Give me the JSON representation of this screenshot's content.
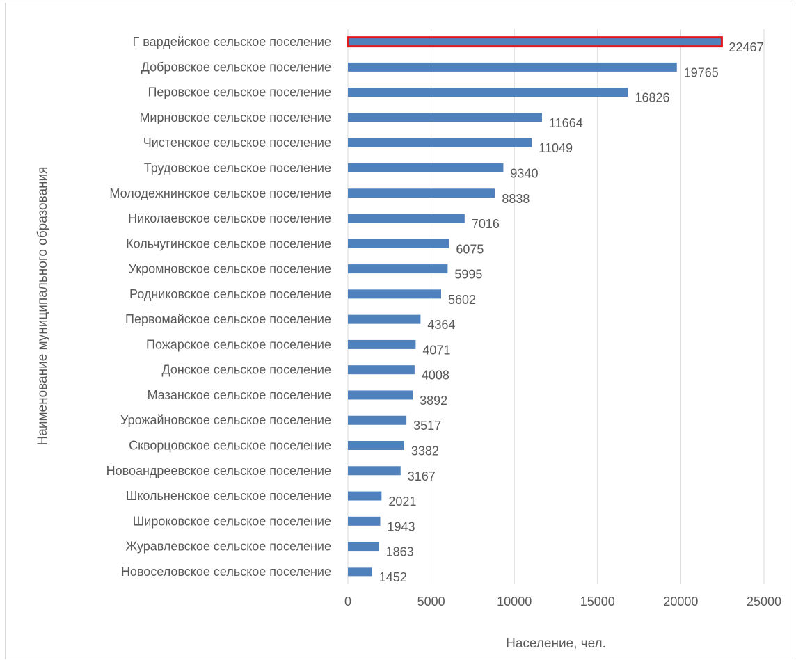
{
  "chart_data": {
    "type": "bar",
    "orientation": "horizontal",
    "xlabel": "Население, чел.",
    "ylabel": "Наименование муниципального образования",
    "xlim": [
      0,
      25000
    ],
    "xticks": [
      0,
      5000,
      10000,
      15000,
      20000,
      25000
    ],
    "grid": "vertical",
    "data_labels": true,
    "categories": [
      "Г вардейское сельское поселение",
      "Добровское сельское поселение",
      "Перовское сельское поселение",
      "Мирновское сельское поселение",
      "Чистенское сельское поселение",
      "Трудовское сельское поселение",
      "Молодежнинское сельское поселение",
      "Николаевское сельское поселение",
      "Кольчугинское сельское поселение",
      "Укромновское сельское поселение",
      "Родниковское сельское поселение",
      "Первомайское сельское поселение",
      "Пожарское сельское поселение",
      "Донское сельское поселение",
      "Мазанское сельское поселение",
      "Урожайновское сельское поселение",
      "Скворцовское сельское поселение",
      "Новоандреевское сельское поселение",
      "Школьненское сельское поселение",
      "Широковское сельское поселение",
      "Журавлевское сельское поселение",
      "Новоселовское сельское поселение"
    ],
    "values": [
      22467,
      19765,
      16826,
      11664,
      11049,
      9340,
      8838,
      7016,
      6075,
      5995,
      5602,
      4364,
      4071,
      4008,
      3892,
      3517,
      3382,
      3167,
      2021,
      1943,
      1863,
      1452
    ],
    "highlighted_index": 0,
    "colors": {
      "bar": "#4f81bd",
      "highlight_outline": "#e31a1c",
      "grid": "#d9d9d9",
      "text": "#595959"
    }
  }
}
